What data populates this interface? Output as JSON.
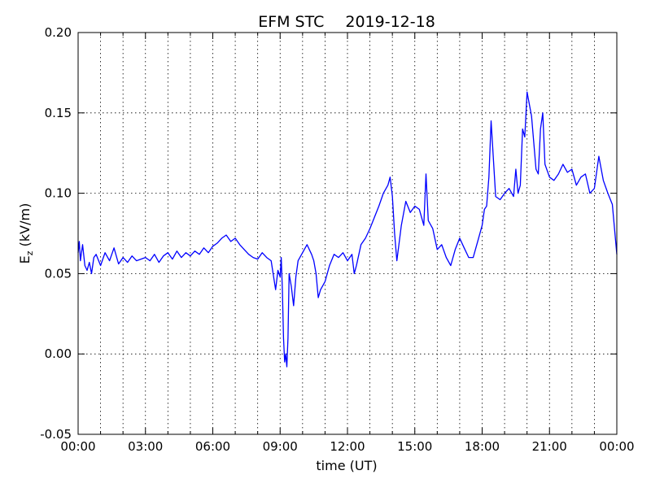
{
  "chart_data": {
    "type": "line",
    "title_left": "EFM STC",
    "title_right": "2019-12-18",
    "xlabel": "time (UT)",
    "ylabel_main": "E",
    "ylabel_sub": "z",
    "ylabel_unit": " (kV/m)",
    "xlim": [
      0,
      24
    ],
    "ylim": [
      -0.05,
      0.2
    ],
    "grid": true,
    "x_ticks": [
      0,
      3,
      6,
      9,
      12,
      15,
      18,
      21,
      24
    ],
    "x_tick_labels": [
      "00:00",
      "03:00",
      "06:00",
      "09:00",
      "12:00",
      "15:00",
      "18:00",
      "21:00",
      "00:00"
    ],
    "y_ticks": [
      -0.05,
      0.0,
      0.05,
      0.1,
      0.15,
      0.2
    ],
    "y_tick_labels": [
      "-0.05",
      "0.00",
      "0.05",
      "0.10",
      "0.15",
      "0.20"
    ],
    "series": [
      {
        "color": "#0000ff",
        "x": [
          0,
          0.05,
          0.1,
          0.2,
          0.3,
          0.4,
          0.5,
          0.6,
          0.7,
          0.8,
          1.0,
          1.2,
          1.4,
          1.6,
          1.8,
          2.0,
          2.2,
          2.4,
          2.6,
          2.8,
          3.0,
          3.2,
          3.4,
          3.6,
          3.8,
          4.0,
          4.2,
          4.4,
          4.6,
          4.8,
          5.0,
          5.2,
          5.4,
          5.6,
          5.8,
          6.0,
          6.2,
          6.4,
          6.6,
          6.8,
          7.0,
          7.2,
          7.4,
          7.6,
          7.8,
          8.0,
          8.2,
          8.4,
          8.6,
          8.8,
          8.9,
          9.0,
          9.05,
          9.1,
          9.15,
          9.2,
          9.25,
          9.3,
          9.35,
          9.4,
          9.5,
          9.6,
          9.7,
          9.8,
          10.0,
          10.2,
          10.4,
          10.5,
          10.6,
          10.7,
          10.8,
          11.0,
          11.2,
          11.4,
          11.6,
          11.8,
          12.0,
          12.2,
          12.3,
          12.4,
          12.6,
          12.8,
          13.0,
          13.2,
          13.4,
          13.6,
          13.8,
          13.9,
          14.0,
          14.1,
          14.2,
          14.4,
          14.6,
          14.8,
          15.0,
          15.2,
          15.4,
          15.5,
          15.6,
          15.8,
          16.0,
          16.2,
          16.4,
          16.6,
          16.8,
          17.0,
          17.2,
          17.4,
          17.6,
          17.8,
          18.0,
          18.1,
          18.2,
          18.3,
          18.4,
          18.6,
          18.8,
          19.0,
          19.2,
          19.4,
          19.5,
          19.6,
          19.7,
          19.8,
          19.9,
          20.0,
          20.2,
          20.4,
          20.5,
          20.6,
          20.7,
          20.8,
          21.0,
          21.2,
          21.4,
          21.6,
          21.8,
          22.0,
          22.2,
          22.4,
          22.6,
          22.8,
          23.0,
          23.2,
          23.4,
          23.6,
          23.8,
          24.0
        ],
        "y": [
          0.063,
          0.07,
          0.058,
          0.068,
          0.055,
          0.052,
          0.057,
          0.05,
          0.06,
          0.062,
          0.055,
          0.063,
          0.058,
          0.066,
          0.056,
          0.06,
          0.057,
          0.061,
          0.058,
          0.059,
          0.06,
          0.058,
          0.062,
          0.057,
          0.061,
          0.063,
          0.059,
          0.064,
          0.06,
          0.063,
          0.061,
          0.064,
          0.062,
          0.066,
          0.063,
          0.067,
          0.069,
          0.072,
          0.074,
          0.07,
          0.072,
          0.068,
          0.065,
          0.062,
          0.06,
          0.059,
          0.063,
          0.06,
          0.058,
          0.04,
          0.052,
          0.048,
          0.06,
          0.04,
          0.01,
          -0.005,
          0.0,
          -0.008,
          0.01,
          0.05,
          0.042,
          0.03,
          0.048,
          0.058,
          0.063,
          0.068,
          0.062,
          0.058,
          0.05,
          0.035,
          0.04,
          0.045,
          0.055,
          0.062,
          0.06,
          0.063,
          0.058,
          0.062,
          0.05,
          0.055,
          0.068,
          0.072,
          0.078,
          0.085,
          0.092,
          0.1,
          0.105,
          0.11,
          0.098,
          0.075,
          0.058,
          0.08,
          0.095,
          0.088,
          0.092,
          0.09,
          0.08,
          0.112,
          0.083,
          0.078,
          0.065,
          0.068,
          0.06,
          0.055,
          0.065,
          0.072,
          0.066,
          0.06,
          0.06,
          0.07,
          0.08,
          0.09,
          0.092,
          0.11,
          0.145,
          0.098,
          0.096,
          0.1,
          0.103,
          0.098,
          0.115,
          0.1,
          0.105,
          0.14,
          0.135,
          0.163,
          0.148,
          0.115,
          0.112,
          0.14,
          0.15,
          0.118,
          0.11,
          0.108,
          0.112,
          0.118,
          0.113,
          0.115,
          0.105,
          0.11,
          0.112,
          0.1,
          0.103,
          0.123,
          0.108,
          0.1,
          0.093,
          0.062
        ]
      }
    ]
  }
}
